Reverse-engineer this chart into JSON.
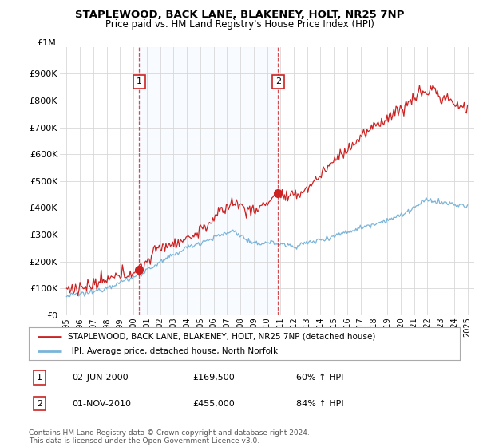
{
  "title_line1": "STAPLEWOOD, BACK LANE, BLAKENEY, HOLT, NR25 7NP",
  "title_line2": "Price paid vs. HM Land Registry's House Price Index (HPI)",
  "ylim": [
    0,
    1000000
  ],
  "yticks": [
    0,
    100000,
    200000,
    300000,
    400000,
    500000,
    600000,
    700000,
    800000,
    900000
  ],
  "ytick_labels": [
    "£0",
    "£100K",
    "£200K",
    "£300K",
    "£400K",
    "£500K",
    "£600K",
    "£700K",
    "£800K",
    "£900K"
  ],
  "top_label": "£1M",
  "xlim_start": 1994.5,
  "xlim_end": 2025.5,
  "xticks": [
    1995,
    1996,
    1997,
    1998,
    1999,
    2000,
    2001,
    2002,
    2003,
    2004,
    2005,
    2006,
    2007,
    2008,
    2009,
    2010,
    2011,
    2012,
    2013,
    2014,
    2015,
    2016,
    2017,
    2018,
    2019,
    2020,
    2021,
    2022,
    2023,
    2024,
    2025
  ],
  "hpi_color": "#7ab4d8",
  "price_color": "#cc2222",
  "vline_color": "#cc2222",
  "shade_color": "#ddeeff",
  "sale1_x": 2000.42,
  "sale1_y": 169500,
  "sale2_x": 2010.83,
  "sale2_y": 455000,
  "legend_label1": "STAPLEWOOD, BACK LANE, BLAKENEY, HOLT, NR25 7NP (detached house)",
  "legend_label2": "HPI: Average price, detached house, North Norfolk",
  "annotation1_info_date": "02-JUN-2000",
  "annotation1_info_price": "£169,500",
  "annotation1_info_hpi": "60% ↑ HPI",
  "annotation2_info_date": "01-NOV-2010",
  "annotation2_info_price": "£455,000",
  "annotation2_info_hpi": "84% ↑ HPI",
  "footer": "Contains HM Land Registry data © Crown copyright and database right 2024.\nThis data is licensed under the Open Government Licence v3.0.",
  "bg_color": "#ffffff",
  "grid_color": "#d8d8d8"
}
